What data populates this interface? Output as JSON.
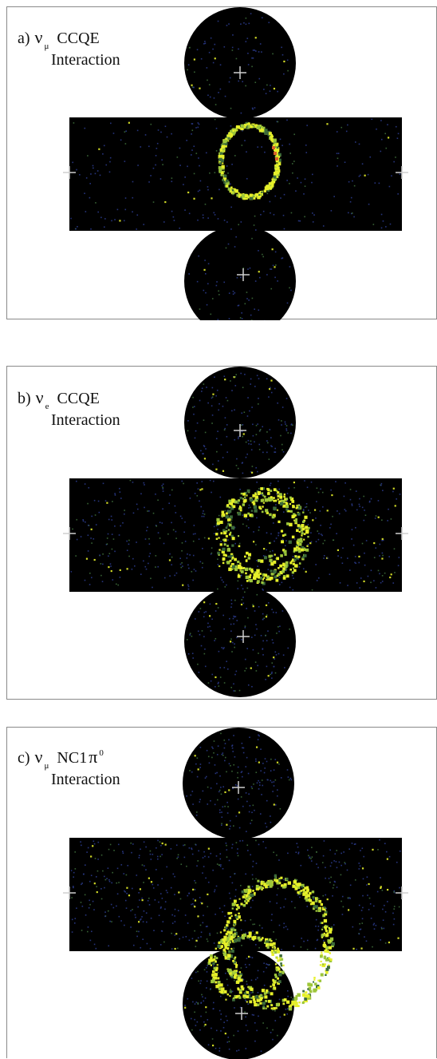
{
  "panels": [
    {
      "tag": "a)",
      "nu": "ν",
      "flavor": "μ",
      "name": "CCQE",
      "pi": "",
      "pi_sup": "",
      "line2": "Interaction"
    },
    {
      "tag": "b)",
      "nu": "ν",
      "flavor": "e",
      "name": "CCQE",
      "pi": "",
      "pi_sup": "",
      "line2": "Interaction"
    },
    {
      "tag": "c)",
      "nu": "ν",
      "flavor": "μ",
      "name": "NC1",
      "pi": "π",
      "pi_sup": "0",
      "line2": "Interaction"
    }
  ],
  "colors": {
    "detector_bg": "#000000",
    "ring": "#e6f02a",
    "hit_dim": "#2a3a8a",
    "hit_mid": "#3d6b3a",
    "hot": "#d8612a",
    "vertex_marker": "#cfcfcf"
  }
}
